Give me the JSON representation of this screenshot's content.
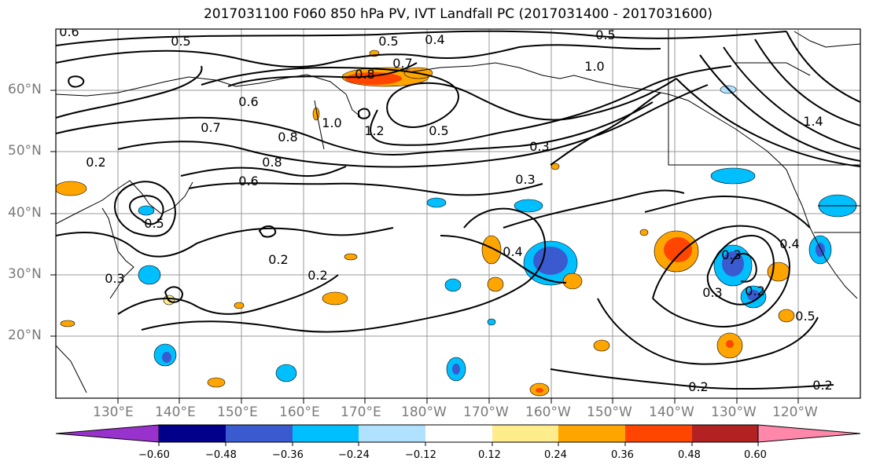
{
  "title": "2017031100 F060 850 hPa PV, IVT Landfall PC (2017031400 - 2017031600)",
  "map": {
    "lat_labels": [
      "60°N",
      "50°N",
      "40°N",
      "30°N",
      "20°N"
    ],
    "lon_labels": [
      "130°E",
      "140°E",
      "150°E",
      "160°E",
      "170°E",
      "180°W",
      "170°W",
      "160°W",
      "150°W",
      "140°W",
      "130°W",
      "120°W"
    ],
    "contour_labels": [
      "0.6",
      "0.5",
      "0.5",
      "0.4",
      "0.5",
      "0.7",
      "0.8",
      "1.0",
      "1.4",
      "0.6",
      "0.7",
      "1.0",
      "1.2",
      "0.5",
      "0.8",
      "0.8",
      "0.6",
      "0.3",
      "0.2",
      "0.3",
      "0.2",
      "0.2",
      "0.4",
      "0.3",
      "0.4",
      "0.3",
      "0.2",
      "0.5",
      "0.2",
      "0.2",
      "0.5",
      "0.3"
    ]
  },
  "colorbar": {
    "colors": [
      "#9932cc",
      "#00008b",
      "#3a5bd0",
      "#00bfff",
      "#b0e2ff",
      "#ffffff",
      "#ffec8b",
      "#ffa500",
      "#ff4500",
      "#b22222",
      "#ff88aa"
    ],
    "ticks": [
      "−0.60",
      "−0.48",
      "−0.36",
      "−0.24",
      "−0.12",
      "0.12",
      "0.24",
      "0.36",
      "0.48",
      "0.60"
    ]
  }
}
